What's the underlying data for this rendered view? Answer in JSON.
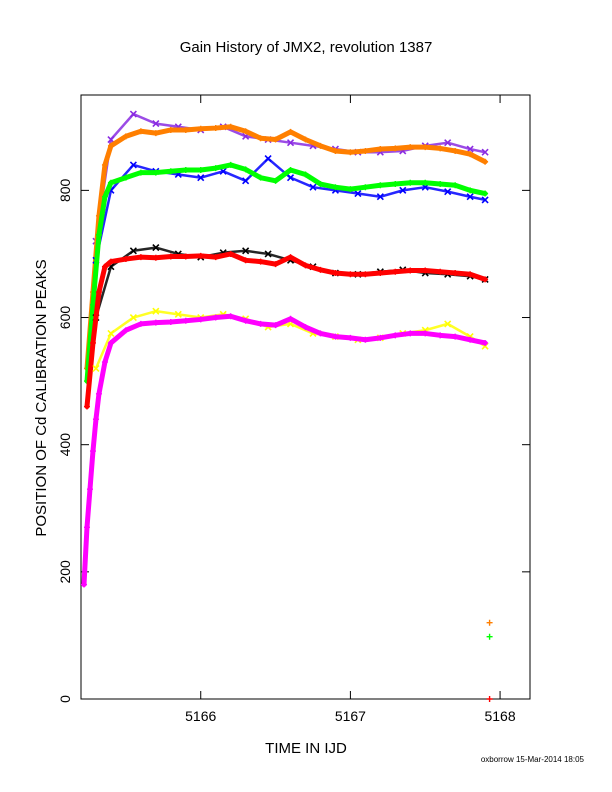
{
  "chart_data": {
    "type": "scatter",
    "title": "Gain History of JMX2, revolution 1387",
    "xlabel": "TIME IN IJD",
    "ylabel": "POSITION OF Cd CALIBRATION PEAKS",
    "xlim": [
      5165.2,
      5168.2
    ],
    "ylim": [
      0,
      950
    ],
    "xticks": [
      5166,
      5167,
      5168
    ],
    "yticks": [
      0,
      200,
      400,
      600,
      800
    ],
    "grid": false,
    "legend": "none",
    "series": [
      {
        "color": "#8a2be2",
        "marker": "x",
        "x": [
          5165.3,
          5165.4,
          5165.55,
          5165.7,
          5165.85,
          5166.0,
          5166.15,
          5166.3,
          5166.45,
          5166.6,
          5166.75,
          5166.9,
          5167.05,
          5167.2,
          5167.35,
          5167.5,
          5167.65,
          5167.8,
          5167.9
        ],
        "y": [
          720,
          880,
          920,
          905,
          900,
          895,
          900,
          885,
          880,
          875,
          870,
          865,
          860,
          860,
          862,
          870,
          875,
          865,
          860
        ]
      },
      {
        "color": "#ff7f00",
        "marker": "+",
        "x": [
          5165.24,
          5165.28,
          5165.32,
          5165.36,
          5165.4,
          5165.5,
          5165.6,
          5165.7,
          5165.8,
          5165.9,
          5166.0,
          5166.1,
          5166.2,
          5166.3,
          5166.4,
          5166.5,
          5166.6,
          5166.7,
          5166.8,
          5166.9,
          5167.0,
          5167.1,
          5167.2,
          5167.3,
          5167.4,
          5167.5,
          5167.6,
          5167.7,
          5167.8,
          5167.9
        ],
        "y": [
          520,
          640,
          760,
          840,
          870,
          885,
          893,
          890,
          895,
          895,
          897,
          898,
          900,
          893,
          882,
          880,
          892,
          880,
          870,
          862,
          860,
          862,
          865,
          866,
          868,
          868,
          866,
          862,
          857,
          845
        ]
      },
      {
        "color": "#0000ff",
        "marker": "x",
        "x": [
          5165.3,
          5165.4,
          5165.55,
          5165.7,
          5165.85,
          5166.0,
          5166.15,
          5166.3,
          5166.45,
          5166.6,
          5166.75,
          5166.9,
          5167.05,
          5167.2,
          5167.35,
          5167.5,
          5167.65,
          5167.8,
          5167.9
        ],
        "y": [
          690,
          800,
          840,
          830,
          825,
          820,
          830,
          815,
          850,
          820,
          805,
          800,
          795,
          790,
          800,
          805,
          798,
          790,
          785
        ]
      },
      {
        "color": "#00ff00",
        "marker": "+",
        "x": [
          5165.24,
          5165.28,
          5165.32,
          5165.36,
          5165.4,
          5165.5,
          5165.6,
          5165.7,
          5165.8,
          5165.9,
          5166.0,
          5166.1,
          5166.2,
          5166.3,
          5166.4,
          5166.5,
          5166.6,
          5166.7,
          5166.8,
          5166.9,
          5167.0,
          5167.1,
          5167.2,
          5167.3,
          5167.4,
          5167.5,
          5167.6,
          5167.7,
          5167.8,
          5167.9
        ],
        "y": [
          500,
          620,
          730,
          790,
          812,
          820,
          828,
          828,
          830,
          832,
          832,
          835,
          840,
          833,
          820,
          815,
          832,
          825,
          810,
          805,
          802,
          805,
          808,
          810,
          812,
          812,
          810,
          808,
          800,
          795
        ]
      },
      {
        "color": "#000000",
        "marker": "x",
        "x": [
          5165.3,
          5165.4,
          5165.55,
          5165.7,
          5165.85,
          5166.0,
          5166.15,
          5166.3,
          5166.45,
          5166.6,
          5166.75,
          5166.9,
          5167.05,
          5167.2,
          5167.35,
          5167.5,
          5167.65,
          5167.8,
          5167.9
        ],
        "y": [
          600,
          680,
          705,
          710,
          700,
          695,
          702,
          705,
          700,
          690,
          680,
          670,
          668,
          672,
          675,
          670,
          668,
          665,
          660
        ]
      },
      {
        "color": "#ff0000",
        "marker": "+",
        "x": [
          5165.24,
          5165.28,
          5165.32,
          5165.36,
          5165.4,
          5165.5,
          5165.6,
          5165.7,
          5165.8,
          5165.9,
          5166.0,
          5166.1,
          5166.2,
          5166.3,
          5166.4,
          5166.5,
          5166.6,
          5166.7,
          5166.8,
          5166.9,
          5167.0,
          5167.1,
          5167.2,
          5167.3,
          5167.4,
          5167.5,
          5167.6,
          5167.7,
          5167.8,
          5167.9
        ],
        "y": [
          460,
          560,
          640,
          680,
          688,
          692,
          695,
          694,
          696,
          696,
          697,
          695,
          700,
          690,
          688,
          684,
          695,
          682,
          675,
          670,
          668,
          668,
          670,
          672,
          674,
          674,
          672,
          670,
          668,
          660
        ]
      },
      {
        "color": "#ffff00",
        "marker": "x",
        "x": [
          5165.3,
          5165.4,
          5165.55,
          5165.7,
          5165.85,
          5166.0,
          5166.15,
          5166.3,
          5166.45,
          5166.6,
          5166.75,
          5166.9,
          5167.05,
          5167.2,
          5167.35,
          5167.5,
          5167.65,
          5167.8,
          5167.9
        ],
        "y": [
          520,
          575,
          600,
          610,
          605,
          600,
          605,
          598,
          585,
          590,
          575,
          570,
          565,
          568,
          575,
          580,
          590,
          570,
          555
        ]
      },
      {
        "color": "#ff00ff",
        "marker": "+",
        "x": [
          5165.22,
          5165.24,
          5165.26,
          5165.28,
          5165.3,
          5165.32,
          5165.36,
          5165.4,
          5165.5,
          5165.6,
          5165.7,
          5165.8,
          5165.9,
          5166.0,
          5166.1,
          5166.2,
          5166.3,
          5166.4,
          5166.5,
          5166.6,
          5166.7,
          5166.8,
          5166.9,
          5167.0,
          5167.1,
          5167.2,
          5167.3,
          5167.4,
          5167.5,
          5167.6,
          5167.7,
          5167.8,
          5167.9
        ],
        "y": [
          180,
          270,
          330,
          390,
          440,
          480,
          530,
          560,
          580,
          590,
          592,
          593,
          595,
          597,
          600,
          602,
          595,
          590,
          588,
          598,
          585,
          575,
          570,
          568,
          565,
          568,
          572,
          575,
          575,
          572,
          570,
          565,
          560
        ]
      }
    ],
    "annotations": [
      {
        "color": "#ff7f00",
        "marker": "+",
        "x": 5167.93,
        "y": 120
      },
      {
        "color": "#00ff00",
        "marker": "+",
        "x": 5167.93,
        "y": 98
      },
      {
        "color": "#ff0000",
        "marker": "+",
        "x": 5167.93,
        "y": 0
      }
    ]
  },
  "footer": "oxborrow 15-Mar-2014 18:05"
}
